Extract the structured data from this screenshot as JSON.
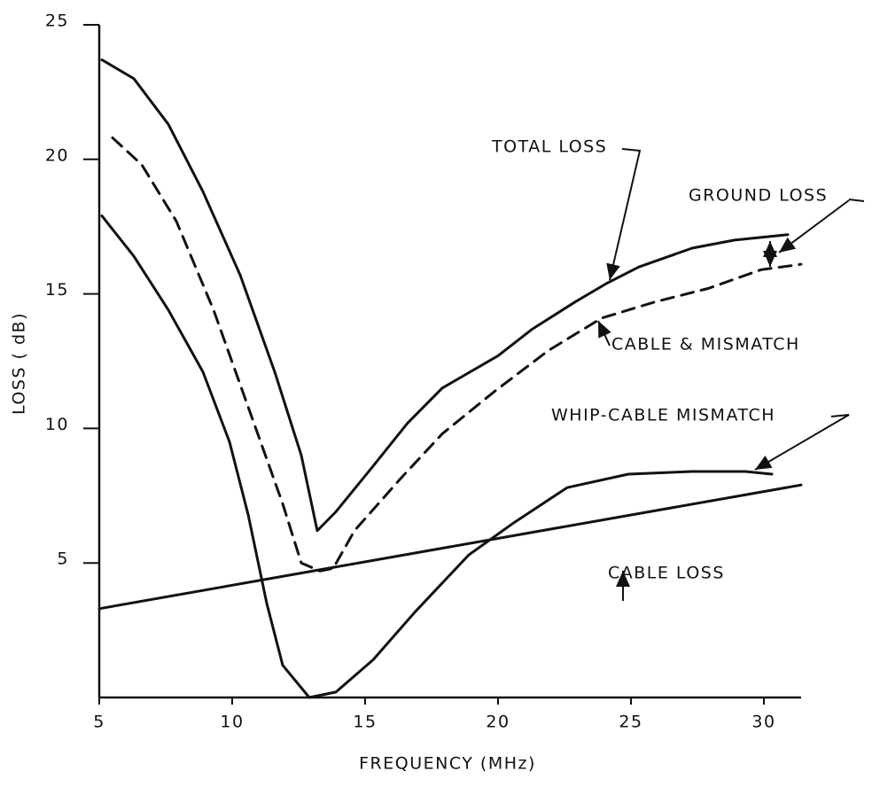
{
  "chart_data": {
    "type": "line",
    "x_label": "FREQUENCY (MHz)",
    "y_label": "LOSS ( dB)",
    "xlim": [
      5,
      31.4
    ],
    "ylim": [
      0,
      25
    ],
    "xticks": [
      5,
      10,
      15,
      20,
      25,
      30
    ],
    "yticks": [
      5,
      10,
      15,
      20,
      25
    ],
    "grid": false,
    "annotations": [
      "TOTAL LOSS",
      "GROUND LOSS",
      "CABLE & MISMATCH",
      "WHIP-CABLE MISMATCH",
      "CABLE LOSS"
    ],
    "series": [
      {
        "name": "TOTAL LOSS",
        "color": "#111111",
        "dashed": false,
        "x": [
          5.1,
          6.3,
          7.6,
          8.9,
          10.3,
          11.6,
          12.6,
          13.2,
          13.9,
          15.3,
          16.6,
          17.9,
          20.0,
          21.3,
          22.9,
          24.1,
          25.3,
          27.3,
          28.9,
          30.9
        ],
        "values": [
          23.7,
          23.0,
          21.3,
          18.8,
          15.7,
          12.1,
          9.0,
          6.2,
          6.9,
          8.6,
          10.2,
          11.5,
          12.7,
          13.7,
          14.7,
          15.4,
          16.0,
          16.7,
          17.0,
          17.2
        ]
      },
      {
        "name": "CABLE & MISMATCH",
        "color": "#111111",
        "dashed": true,
        "x": [
          5.5,
          6.6,
          7.9,
          9.3,
          10.6,
          11.9,
          12.6,
          13.3,
          13.8,
          14.6,
          16.3,
          17.9,
          19.9,
          21.9,
          23.9,
          25.9,
          27.9,
          29.9,
          31.4
        ],
        "values": [
          20.8,
          19.8,
          17.7,
          14.4,
          10.8,
          7.2,
          5.0,
          4.7,
          4.8,
          6.2,
          8.1,
          9.8,
          11.4,
          12.9,
          14.1,
          14.7,
          15.2,
          15.9,
          16.1
        ]
      },
      {
        "name": "WHIP-CABLE MISMATCH",
        "color": "#111111",
        "dashed": false,
        "x": [
          5.1,
          6.3,
          7.6,
          8.9,
          9.9,
          10.6,
          11.3,
          11.9,
          12.9,
          13.9,
          15.3,
          16.9,
          18.9,
          20.6,
          22.6,
          24.9,
          27.3,
          29.3,
          30.3
        ],
        "values": [
          17.9,
          16.4,
          14.4,
          12.1,
          9.5,
          6.8,
          3.5,
          1.2,
          0,
          0.2,
          1.4,
          3.2,
          5.3,
          6.5,
          7.8,
          8.3,
          8.4,
          8.4,
          8.3
        ]
      },
      {
        "name": "CABLE LOSS",
        "color": "#111111",
        "dashed": false,
        "x": [
          5,
          31.4
        ],
        "values": [
          3.3,
          7.9
        ]
      }
    ]
  }
}
